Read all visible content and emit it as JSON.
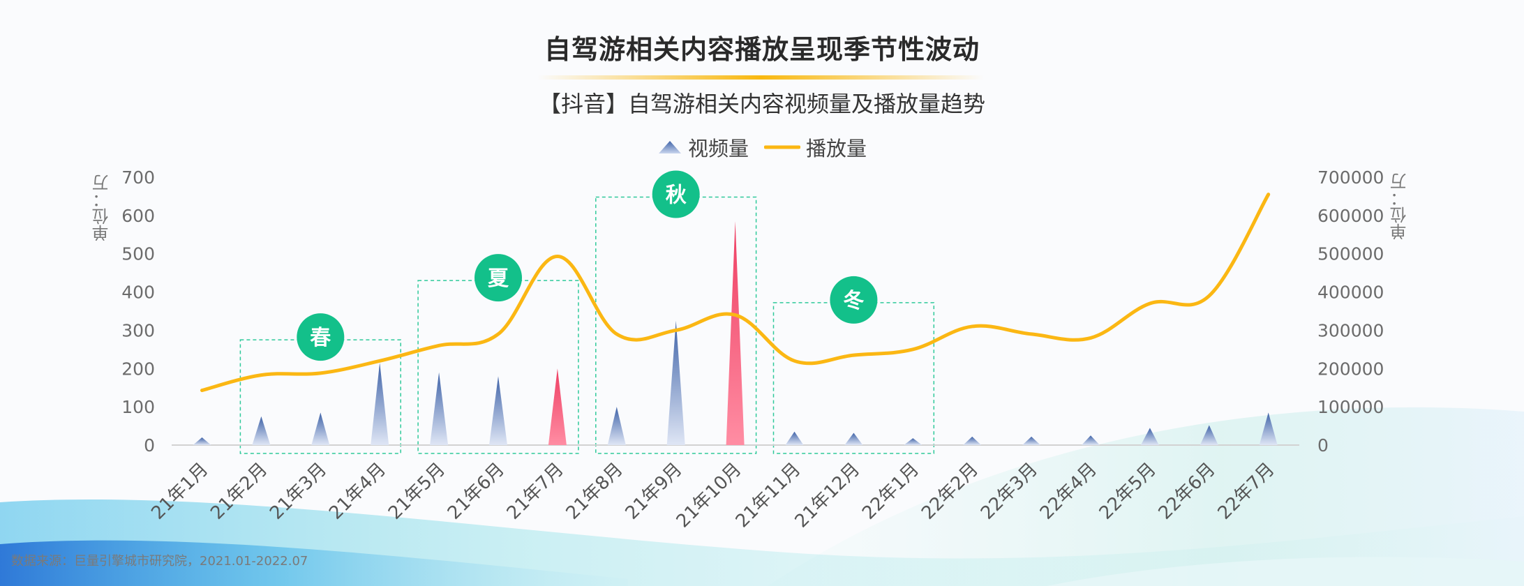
{
  "title": "自驾游相关内容播放呈现季节性波动",
  "subtitle": "【抖音】自驾游相关内容视频量及播放量趋势",
  "source": "数据来源：巨量引擎城市研究院，2021.01-2022.07",
  "colors": {
    "video_bar": "#3f63a8",
    "video_bar_highlight": "#ee3f63",
    "play_line": "#fbb713",
    "season_badge": "#13c08a",
    "season_box": "#2ec99a"
  },
  "chart_data": {
    "type": "bar+line",
    "x": [
      "21年1月",
      "21年2月",
      "21年3月",
      "21年4月",
      "21年5月",
      "21年6月",
      "21年7月",
      "21年8月",
      "21年9月",
      "21年10月",
      "21年11月",
      "21年12月",
      "22年1月",
      "22年2月",
      "22年3月",
      "22年4月",
      "22年5月",
      "22年6月",
      "22年7月"
    ],
    "series": [
      {
        "name": "视频量",
        "type": "bar",
        "axis": "left",
        "values": [
          20,
          75,
          85,
          215,
          190,
          180,
          200,
          100,
          325,
          585,
          35,
          32,
          18,
          22,
          22,
          25,
          45,
          52,
          85
        ],
        "highlight_indices": [
          6,
          9
        ]
      },
      {
        "name": "播放量",
        "type": "line",
        "axis": "right",
        "values": [
          143000,
          183000,
          188000,
          220000,
          260000,
          290000,
          493000,
          290000,
          300000,
          340000,
          220000,
          235000,
          250000,
          310000,
          290000,
          280000,
          370000,
          390000,
          655000
        ]
      }
    ],
    "y_left": {
      "label": "单位：万",
      "range": [
        0,
        700
      ],
      "ticks": [
        "0",
        "100",
        "200",
        "300",
        "400",
        "500",
        "600",
        "700"
      ]
    },
    "y_right": {
      "label": "单位：万",
      "range": [
        0,
        700000
      ],
      "ticks": [
        "0",
        "100000",
        "200000",
        "300000",
        "400000",
        "500000",
        "600000",
        "700000"
      ]
    },
    "legend": {
      "position": "top-center",
      "entries": [
        "视频量",
        "播放量"
      ]
    },
    "annotations": [
      {
        "label": "春",
        "from": 1,
        "to": 3,
        "y_top": 275
      },
      {
        "label": "夏",
        "from": 4,
        "to": 6,
        "y_top": 430
      },
      {
        "label": "秋",
        "from": 7,
        "to": 9,
        "y_top": 648
      },
      {
        "label": "冬",
        "from": 10,
        "to": 12,
        "y_top": 372
      }
    ],
    "grid": false
  }
}
